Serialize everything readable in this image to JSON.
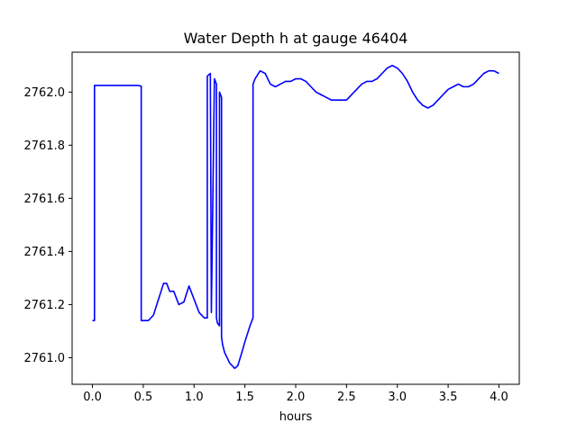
{
  "chart_data": {
    "type": "line",
    "title": "Water Depth h at gauge 46404",
    "xlabel": "hours",
    "ylabel": "",
    "xlim": [
      -0.2,
      4.2
    ],
    "ylim": [
      2760.9,
      2762.15
    ],
    "xticks": [
      0.0,
      0.5,
      1.0,
      1.5,
      2.0,
      2.5,
      3.0,
      3.5,
      4.0
    ],
    "xtick_labels": [
      "0.0",
      "0.5",
      "1.0",
      "1.5",
      "2.0",
      "2.5",
      "3.0",
      "3.5",
      "4.0"
    ],
    "yticks": [
      2761.0,
      2761.2,
      2761.4,
      2761.6,
      2761.8,
      2762.0
    ],
    "ytick_labels": [
      "2761.0",
      "2761.2",
      "2761.4",
      "2761.6",
      "2761.8",
      "2762.0"
    ],
    "grid": false,
    "legend": "none",
    "line_color": "#0000ff",
    "series": [
      {
        "name": "",
        "x": [
          0.0,
          0.02,
          0.02,
          0.45,
          0.48,
          0.48,
          0.55,
          0.6,
          0.65,
          0.7,
          0.73,
          0.76,
          0.8,
          0.85,
          0.9,
          0.95,
          1.0,
          1.05,
          1.1,
          1.13,
          1.13,
          1.16,
          1.17,
          1.17,
          1.2,
          1.22,
          1.22,
          1.23,
          1.25,
          1.25,
          1.27,
          1.27,
          1.28,
          1.3,
          1.35,
          1.4,
          1.43,
          1.47,
          1.5,
          1.55,
          1.58,
          1.58,
          1.6,
          1.65,
          1.7,
          1.75,
          1.8,
          1.85,
          1.9,
          1.95,
          2.0,
          2.05,
          2.1,
          2.15,
          2.2,
          2.25,
          2.3,
          2.35,
          2.4,
          2.45,
          2.5,
          2.55,
          2.6,
          2.65,
          2.7,
          2.75,
          2.8,
          2.85,
          2.9,
          2.95,
          3.0,
          3.05,
          3.1,
          3.15,
          3.2,
          3.25,
          3.3,
          3.35,
          3.4,
          3.45,
          3.5,
          3.55,
          3.6,
          3.65,
          3.7,
          3.75,
          3.8,
          3.85,
          3.9,
          3.95,
          4.0
        ],
        "values": [
          2761.14,
          2761.14,
          2762.025,
          2762.025,
          2762.022,
          2761.14,
          2761.14,
          2761.16,
          2761.22,
          2761.28,
          2761.28,
          2761.25,
          2761.25,
          2761.2,
          2761.21,
          2761.27,
          2761.22,
          2761.17,
          2761.15,
          2761.15,
          2762.06,
          2762.07,
          2761.18,
          2761.17,
          2762.05,
          2762.03,
          2761.15,
          2761.13,
          2761.12,
          2762.0,
          2761.98,
          2761.08,
          2761.05,
          2761.02,
          2760.98,
          2760.96,
          2760.97,
          2761.02,
          2761.06,
          2761.12,
          2761.15,
          2762.03,
          2762.05,
          2762.08,
          2762.07,
          2762.03,
          2762.02,
          2762.03,
          2762.04,
          2762.04,
          2762.05,
          2762.05,
          2762.04,
          2762.02,
          2762.0,
          2761.99,
          2761.98,
          2761.97,
          2761.97,
          2761.97,
          2761.97,
          2761.99,
          2762.01,
          2762.03,
          2762.04,
          2762.04,
          2762.05,
          2762.07,
          2762.09,
          2762.1,
          2762.09,
          2762.07,
          2762.04,
          2762.0,
          2761.97,
          2761.95,
          2761.94,
          2761.95,
          2761.97,
          2761.99,
          2762.01,
          2762.02,
          2762.03,
          2762.02,
          2762.02,
          2762.03,
          2762.05,
          2762.07,
          2762.08,
          2762.08,
          2762.07
        ]
      }
    ]
  }
}
